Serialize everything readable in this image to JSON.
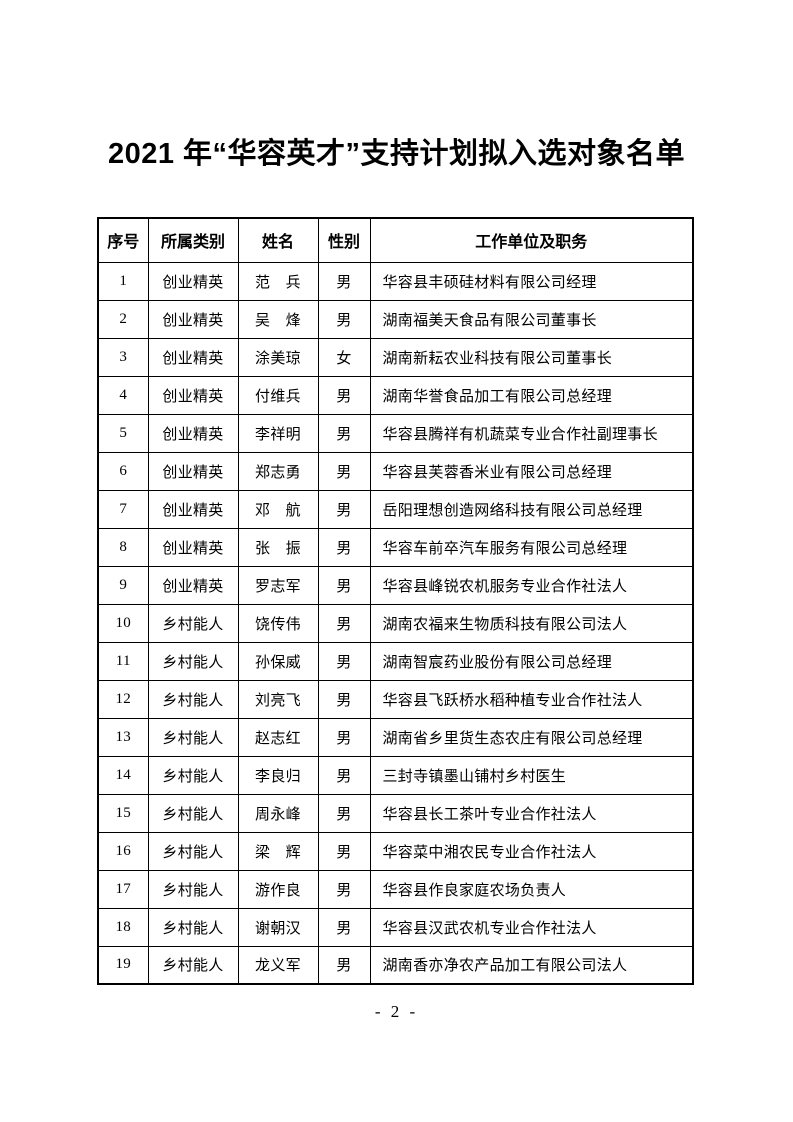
{
  "page": {
    "title": "2021 年“华容英才”支持计划拟入选对象名单",
    "footer_page_number": "- 2 -"
  },
  "table": {
    "headers": [
      "序号",
      "所属类别",
      "姓名",
      "性别",
      "工作单位及职务"
    ],
    "rows": [
      {
        "no": "1",
        "category": "创业精英",
        "name": "范　兵",
        "gender": "男",
        "unit": "华容县丰硕硅材料有限公司经理"
      },
      {
        "no": "2",
        "category": "创业精英",
        "name": "吴　烽",
        "gender": "男",
        "unit": "湖南福美天食品有限公司董事长"
      },
      {
        "no": "3",
        "category": "创业精英",
        "name": "涂美琼",
        "gender": "女",
        "unit": "湖南新耘农业科技有限公司董事长"
      },
      {
        "no": "4",
        "category": "创业精英",
        "name": "付维兵",
        "gender": "男",
        "unit": "湖南华誉食品加工有限公司总经理"
      },
      {
        "no": "5",
        "category": "创业精英",
        "name": "李祥明",
        "gender": "男",
        "unit": "华容县腾祥有机蔬菜专业合作社副理事长"
      },
      {
        "no": "6",
        "category": "创业精英",
        "name": "郑志勇",
        "gender": "男",
        "unit": "华容县芙蓉香米业有限公司总经理"
      },
      {
        "no": "7",
        "category": "创业精英",
        "name": "邓　航",
        "gender": "男",
        "unit": "岳阳理想创造网络科技有限公司总经理"
      },
      {
        "no": "8",
        "category": "创业精英",
        "name": "张　振",
        "gender": "男",
        "unit": "华容车前卒汽车服务有限公司总经理"
      },
      {
        "no": "9",
        "category": "创业精英",
        "name": "罗志军",
        "gender": "男",
        "unit": "华容县峰锐农机服务专业合作社法人"
      },
      {
        "no": "10",
        "category": "乡村能人",
        "name": "饶传伟",
        "gender": "男",
        "unit": "湖南农福来生物质科技有限公司法人"
      },
      {
        "no": "11",
        "category": "乡村能人",
        "name": "孙保威",
        "gender": "男",
        "unit": "湖南智宸药业股份有限公司总经理"
      },
      {
        "no": "12",
        "category": "乡村能人",
        "name": "刘亮飞",
        "gender": "男",
        "unit": "华容县飞跃桥水稻种植专业合作社法人"
      },
      {
        "no": "13",
        "category": "乡村能人",
        "name": "赵志红",
        "gender": "男",
        "unit": "湖南省乡里货生态农庄有限公司总经理"
      },
      {
        "no": "14",
        "category": "乡村能人",
        "name": "李良归",
        "gender": "男",
        "unit": "三封寺镇墨山铺村乡村医生"
      },
      {
        "no": "15",
        "category": "乡村能人",
        "name": "周永峰",
        "gender": "男",
        "unit": "华容县长工茶叶专业合作社法人"
      },
      {
        "no": "16",
        "category": "乡村能人",
        "name": "梁　辉",
        "gender": "男",
        "unit": "华容菜中湘农民专业合作社法人"
      },
      {
        "no": "17",
        "category": "乡村能人",
        "name": "游作良",
        "gender": "男",
        "unit": "华容县作良家庭农场负责人"
      },
      {
        "no": "18",
        "category": "乡村能人",
        "name": "谢朝汉",
        "gender": "男",
        "unit": "华容县汉武农机专业合作社法人"
      },
      {
        "no": "19",
        "category": "乡村能人",
        "name": "龙义军",
        "gender": "男",
        "unit": "湖南香亦净农产品加工有限公司法人"
      }
    ]
  }
}
